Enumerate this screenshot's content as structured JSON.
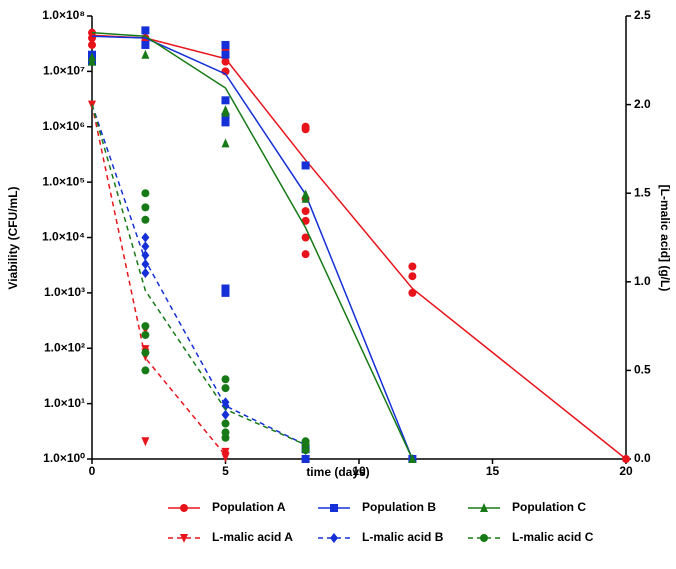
{
  "chart_data": {
    "type": "line",
    "xlabel": "time (days)",
    "ylabel": "Viability (CFU/mL)",
    "y2label": "[L-malic acid] (g/L)",
    "xlim": [
      0,
      20
    ],
    "xticks": [
      0,
      5,
      10,
      15,
      20
    ],
    "ylim": [
      1,
      100000000
    ],
    "ylog": true,
    "yticks": [
      {
        "value": 1,
        "label": "1.0×10⁰"
      },
      {
        "value": 10,
        "label": "1.0×10¹"
      },
      {
        "value": 100,
        "label": "1.0×10²"
      },
      {
        "value": 1000,
        "label": "1.0×10³"
      },
      {
        "value": 10000,
        "label": "1.0×10⁴"
      },
      {
        "value": 100000,
        "label": "1.0×10⁵"
      },
      {
        "value": 1000000,
        "label": "1.0×10⁶"
      },
      {
        "value": 10000000,
        "label": "1.0×10⁷"
      },
      {
        "value": 100000000,
        "label": "1.0×10⁸"
      }
    ],
    "y2lim": [
      0,
      2.5
    ],
    "y2ticks": [
      {
        "value": 0,
        "label": "0.0"
      },
      {
        "value": 0.5,
        "label": "0.5"
      },
      {
        "value": 1,
        "label": "1.0"
      },
      {
        "value": 1.5,
        "label": "1.5"
      },
      {
        "value": 2,
        "label": "2.0"
      },
      {
        "value": 2.5,
        "label": "2.5"
      }
    ],
    "series": [
      {
        "name": "Population A",
        "color": "#e8141b",
        "marker": "circle",
        "axis": "y",
        "dashed": false,
        "x": [
          0,
          2,
          5,
          8,
          12,
          20
        ],
        "values": [
          45000000,
          40000000,
          17000000,
          250000,
          1200,
          1
        ],
        "points_x": [
          0,
          0,
          0,
          2,
          2,
          5,
          5,
          5,
          5,
          8,
          8,
          8,
          8,
          8,
          8,
          8,
          12,
          12,
          12,
          20
        ],
        "points_y": [
          50000000,
          40000000,
          30000000,
          40000000,
          35000000,
          25000000,
          20000000,
          15000000,
          10000000,
          1000000,
          900000,
          50000,
          30000,
          20000,
          10000,
          5000,
          3000,
          2000,
          1000,
          1
        ]
      },
      {
        "name": "Population B",
        "color": "#1530d6",
        "marker": "square",
        "axis": "y",
        "dashed": false,
        "x": [
          0,
          2,
          5,
          8,
          12
        ],
        "values": [
          43000000,
          40000000,
          9000000,
          60000,
          1
        ],
        "points_x": [
          0,
          0,
          2,
          2,
          5,
          5,
          5,
          5,
          5,
          5,
          5,
          8,
          8,
          8,
          12
        ],
        "points_y": [
          20000000,
          15000000,
          55000000,
          30000000,
          30000000,
          20000000,
          3000000,
          1500000,
          1200000,
          1200,
          1000,
          200000,
          1.5,
          1,
          1
        ]
      },
      {
        "name": "Population C",
        "color": "#177a17",
        "marker": "triangle",
        "axis": "y",
        "dashed": false,
        "x": [
          0,
          2,
          5,
          8,
          12
        ],
        "values": [
          50000000,
          43000000,
          5000000,
          15000,
          1
        ],
        "points_x": [
          0,
          0,
          2,
          5,
          5,
          5,
          8,
          8,
          12
        ],
        "points_y": [
          15000000,
          18000000,
          20000000,
          2000000,
          1800000,
          500000,
          60000,
          50000,
          1
        ]
      },
      {
        "name": "L-malic acid A",
        "color": "#e8141b",
        "marker": "triangle-down",
        "axis": "y2",
        "dashed": true,
        "x": [
          0,
          2,
          5
        ],
        "values": [
          2.0,
          0.57,
          0.02
        ],
        "points_x": [
          0,
          2,
          2,
          2,
          2,
          2,
          5,
          5,
          5
        ],
        "points_y": [
          2.0,
          0.73,
          0.62,
          0.6,
          0.58,
          0.1,
          0.04,
          0.02,
          0.01
        ]
      },
      {
        "name": "L-malic acid B",
        "color": "#1530d6",
        "marker": "diamond",
        "axis": "y2",
        "dashed": true,
        "x": [
          0,
          2,
          5,
          8
        ],
        "values": [
          2.0,
          1.12,
          0.3,
          0.08
        ],
        "points_x": [
          2,
          2,
          2,
          2,
          2,
          5,
          5,
          5,
          8,
          8
        ],
        "points_y": [
          1.25,
          1.2,
          1.15,
          1.1,
          1.05,
          0.32,
          0.3,
          0.25,
          0.08,
          0.05
        ]
      },
      {
        "name": "L-malic acid C",
        "color": "#177a17",
        "marker": "circle",
        "axis": "y2",
        "dashed": true,
        "x": [
          0,
          2,
          5,
          8
        ],
        "values": [
          2.0,
          0.95,
          0.28,
          0.08
        ],
        "points_x": [
          2,
          2,
          2,
          2,
          2,
          2,
          2,
          5,
          5,
          5,
          5,
          5,
          8,
          8,
          8
        ],
        "points_y": [
          1.5,
          1.42,
          1.35,
          0.75,
          0.7,
          0.6,
          0.5,
          0.45,
          0.4,
          0.2,
          0.15,
          0.12,
          0.1,
          0.08,
          0.05
        ]
      }
    ]
  }
}
